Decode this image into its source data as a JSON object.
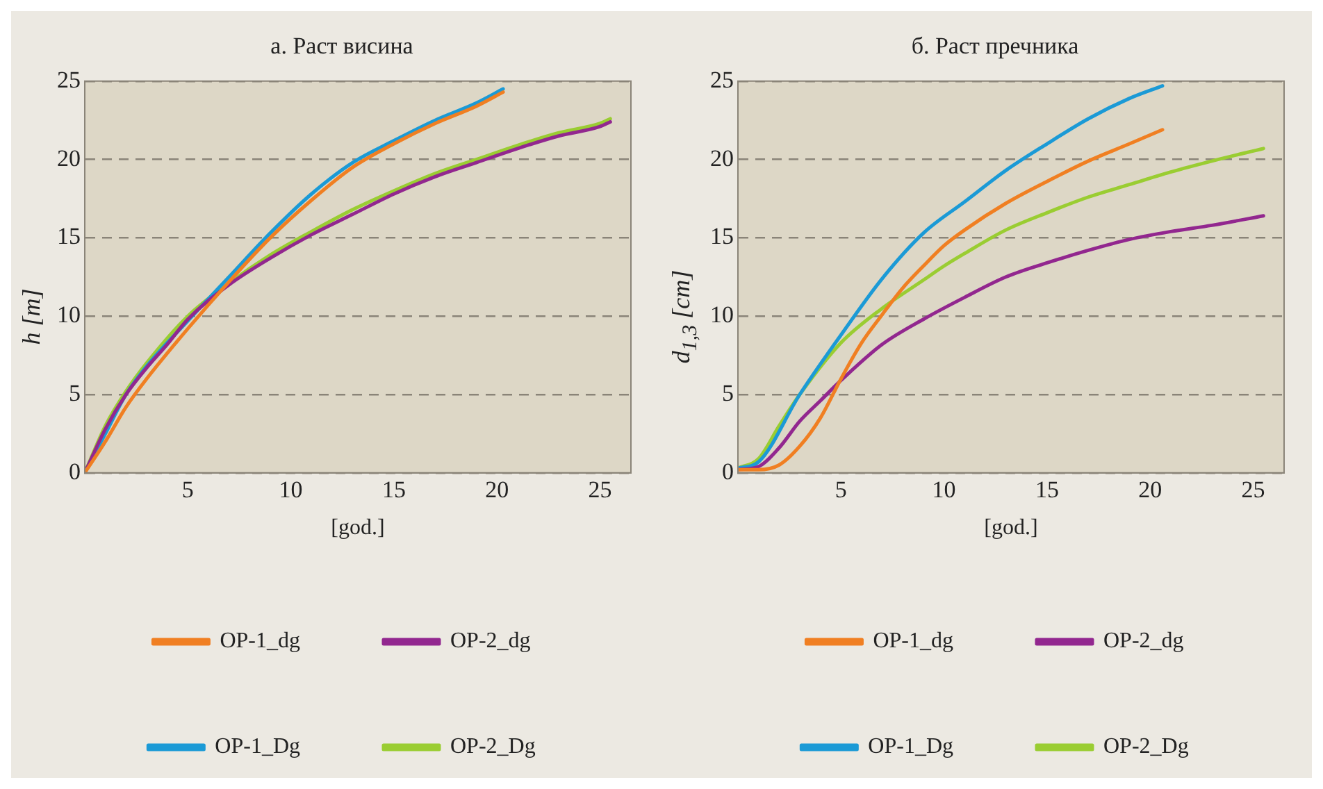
{
  "chart_data": [
    {
      "type": "line",
      "title": "а. Раст висина",
      "xlabel": "[god.]",
      "ylabel": "h [m]",
      "xlim": [
        0,
        26.5
      ],
      "xticks": [
        5,
        10,
        15,
        20,
        25
      ],
      "ylim": [
        0,
        25
      ],
      "yticks": [
        0,
        5,
        10,
        15,
        20,
        25
      ],
      "grid": "y",
      "legend": "bottom",
      "marker": "none",
      "line_style": "solid",
      "series": [
        {
          "name": "OP-1_dg",
          "color": "#f07f22",
          "x": [
            0,
            1,
            2,
            3,
            5,
            7,
            9,
            11,
            13,
            15,
            17,
            19,
            20.3
          ],
          "values": [
            0,
            2,
            4.2,
            6,
            9.2,
            12.2,
            15,
            17.4,
            19.5,
            21,
            22.3,
            23.4,
            24.3
          ]
        },
        {
          "name": "OP-2_dg",
          "color": "#92278f",
          "x": [
            0,
            1,
            2,
            3,
            4,
            5,
            7,
            9,
            11,
            13,
            15,
            17,
            19,
            21,
            23,
            25,
            25.5
          ],
          "values": [
            0,
            2.8,
            5,
            6.7,
            8.2,
            9.8,
            12,
            13.7,
            15.2,
            16.5,
            17.8,
            18.9,
            19.8,
            20.7,
            21.5,
            22.1,
            22.4
          ]
        },
        {
          "name": "OP-1_Dg",
          "color": "#1b9ad6",
          "x": [
            0,
            1,
            2,
            3,
            5,
            7,
            9,
            11,
            13,
            15,
            17,
            19,
            20.3
          ],
          "values": [
            0,
            2.5,
            5,
            6.8,
            9.7,
            12.5,
            15.3,
            17.8,
            19.8,
            21.2,
            22.5,
            23.6,
            24.5
          ]
        },
        {
          "name": "OP-2_Dg",
          "color": "#9acd32",
          "x": [
            0,
            1,
            2,
            3,
            5,
            7,
            9,
            11,
            13,
            15,
            17,
            19,
            21,
            23,
            25,
            25.5
          ],
          "values": [
            0,
            3,
            5.2,
            7,
            10,
            12.1,
            13.9,
            15.4,
            16.8,
            18,
            19.1,
            20,
            20.9,
            21.7,
            22.3,
            22.6
          ]
        }
      ]
    },
    {
      "type": "line",
      "title": "б. Раст пречника",
      "xlabel": "[god.]",
      "ylabel": "d$_{1,3}$ [cm]",
      "xlim": [
        0,
        26.5
      ],
      "xticks": [
        5,
        10,
        15,
        20,
        25
      ],
      "ylim": [
        0,
        25
      ],
      "yticks": [
        0,
        5,
        10,
        15,
        20,
        25
      ],
      "grid": "y",
      "legend": "bottom",
      "marker": "none",
      "line_style": "solid",
      "series": [
        {
          "name": "OP-1_dg",
          "color": "#f07f22",
          "x": [
            0,
            1,
            2,
            3,
            4,
            5,
            6,
            7,
            8,
            9,
            10,
            11,
            13,
            15,
            17,
            19,
            20.6
          ],
          "values": [
            0.2,
            0.2,
            0.5,
            1.7,
            3.5,
            6,
            8.3,
            10.1,
            11.8,
            13.2,
            14.5,
            15.5,
            17.2,
            18.6,
            19.9,
            21,
            21.9
          ]
        },
        {
          "name": "OP-2_dg",
          "color": "#92278f",
          "x": [
            0,
            1,
            2,
            3,
            4,
            5,
            7,
            9,
            11,
            13,
            15,
            17,
            19,
            21,
            23,
            25.5
          ],
          "values": [
            0.2,
            0.4,
            1.6,
            3.3,
            4.6,
            5.9,
            8.2,
            9.8,
            11.2,
            12.5,
            13.4,
            14.2,
            14.9,
            15.4,
            15.8,
            16.4
          ]
        },
        {
          "name": "OP-1_Dg",
          "color": "#1b9ad6",
          "x": [
            0,
            1,
            3,
            5,
            7,
            9,
            11,
            13,
            15,
            17,
            19,
            20.6
          ],
          "values": [
            0.3,
            0.7,
            5,
            8.8,
            12.4,
            15.3,
            17.3,
            19.3,
            21,
            22.6,
            23.9,
            24.7
          ]
        },
        {
          "name": "OP-2_Dg",
          "color": "#9acd32",
          "x": [
            0,
            1,
            2,
            3,
            5,
            7,
            9,
            10,
            11,
            13,
            15,
            17,
            19,
            21,
            23,
            25.5
          ],
          "values": [
            0.3,
            0.9,
            3,
            5,
            8.3,
            10.5,
            12.3,
            13.2,
            14,
            15.5,
            16.6,
            17.6,
            18.4,
            19.2,
            19.9,
            20.7
          ]
        }
      ]
    }
  ]
}
